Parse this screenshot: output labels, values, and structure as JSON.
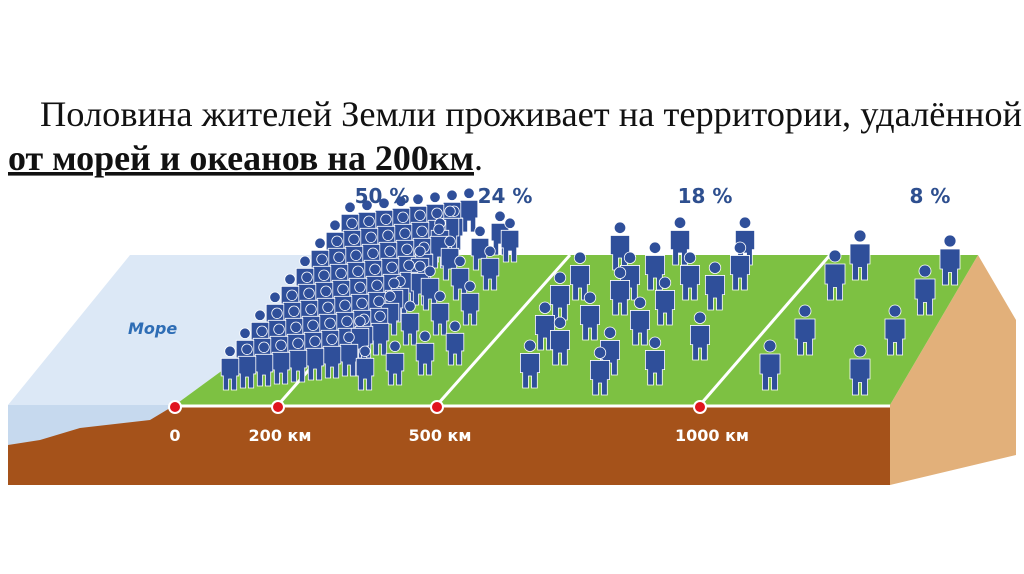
{
  "title": {
    "line1": "Половина жителей Земли проживает на территории, удалённой",
    "line2": "от морей и океанов на 200км",
    "line2_end": "."
  },
  "sea_label": "Море",
  "zones": [
    "50 %",
    "24 %",
    "18 %",
    "8 %"
  ],
  "distance_marks": [
    "0",
    "200 км",
    "500 км",
    "1000 км"
  ]
}
